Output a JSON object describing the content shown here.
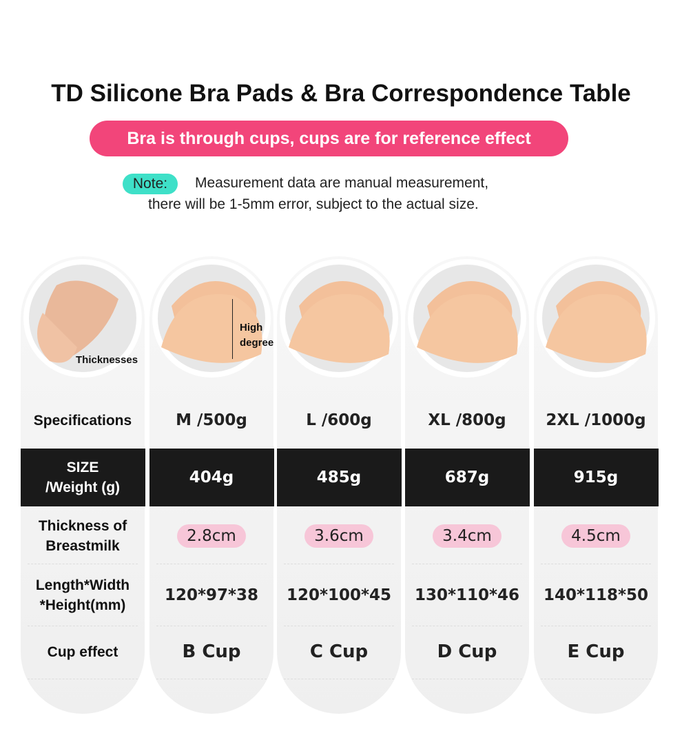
{
  "header": {
    "title": "TD Silicone Bra Pads & Bra Correspondence Table",
    "banner": "Bra is through cups, cups are for reference effect",
    "note_label": "Note:",
    "note_lines": [
      "Measurement data are manual measurement,",
      "there will be 1-5mm error, subject to the actual size."
    ]
  },
  "image_labels": {
    "thickness": "Thicknesses",
    "height": [
      "High",
      "degree"
    ]
  },
  "table": {
    "row_labels": [
      [
        "Specifications"
      ],
      [
        "SIZE",
        "/Weight (g)"
      ],
      [
        "Thickness of",
        "Breastmilk"
      ],
      [
        "Length*Width",
        "*Height(mm)"
      ],
      [
        "Cup effect"
      ]
    ],
    "columns": [
      {
        "spec": "M /500g",
        "weight": "404g",
        "thickness": "2.8cm",
        "dimensions": "120*97*38",
        "cup": "B Cup"
      },
      {
        "spec": "L /600g",
        "weight": "485g",
        "thickness": "3.6cm",
        "dimensions": "120*100*45",
        "cup": "C Cup"
      },
      {
        "spec": "XL /800g",
        "weight": "687g",
        "thickness": "3.4cm",
        "dimensions": "130*110*46",
        "cup": "D Cup"
      },
      {
        "spec": "2XL /1000g",
        "weight": "915g",
        "thickness": "4.5cm",
        "dimensions": "140*118*50",
        "cup": "E Cup"
      }
    ]
  }
}
